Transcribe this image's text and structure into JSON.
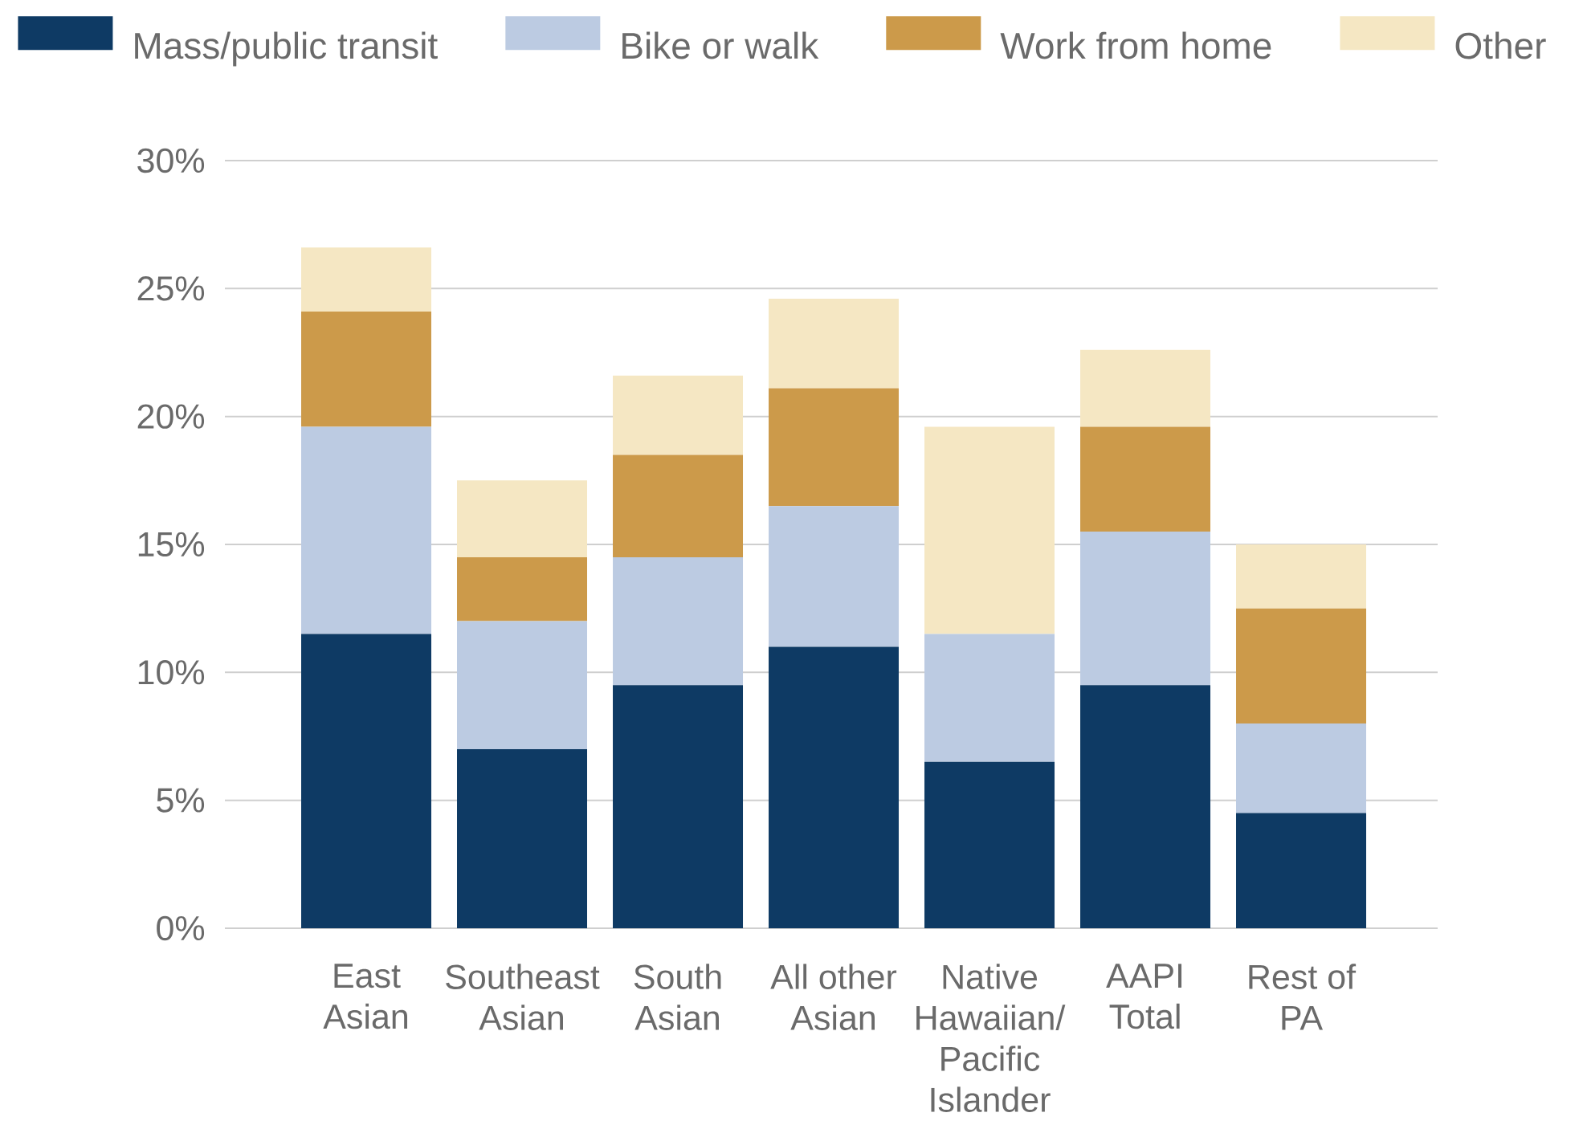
{
  "chart_data": {
    "type": "bar",
    "stacked": true,
    "categories": [
      "East Asian",
      "Southeast Asian",
      "South Asian",
      "All other Asian",
      "Native Hawaiian/ Pacific Islander",
      "AAPI Total",
      "Rest of PA"
    ],
    "series": [
      {
        "name": "Mass/public transit",
        "color": "#0e3a64",
        "values": [
          11.5,
          7.0,
          9.5,
          11.0,
          6.5,
          9.5,
          4.5
        ]
      },
      {
        "name": "Bike or walk",
        "color": "#bccbe2",
        "values": [
          8.1,
          5.0,
          5.0,
          5.5,
          5.0,
          6.0,
          3.5
        ]
      },
      {
        "name": "Work from home",
        "color": "#cc9a4a",
        "values": [
          4.5,
          2.5,
          4.0,
          4.6,
          0,
          4.1,
          4.5
        ]
      },
      {
        "name": "Other",
        "color": "#f5e7c3",
        "values": [
          2.5,
          3.0,
          3.1,
          3.5,
          8.1,
          3.0,
          2.5
        ]
      }
    ],
    "ylim": [
      0,
      30
    ],
    "yticks": [
      {
        "value": 0,
        "label": "0%"
      },
      {
        "value": 5,
        "label": "5%"
      },
      {
        "value": 10,
        "label": "10%"
      },
      {
        "value": 15,
        "label": "15%"
      },
      {
        "value": 20,
        "label": "20%"
      },
      {
        "value": 25,
        "label": "25%"
      },
      {
        "value": 30,
        "label": "30%"
      }
    ],
    "grid": "y",
    "legend": "top"
  }
}
